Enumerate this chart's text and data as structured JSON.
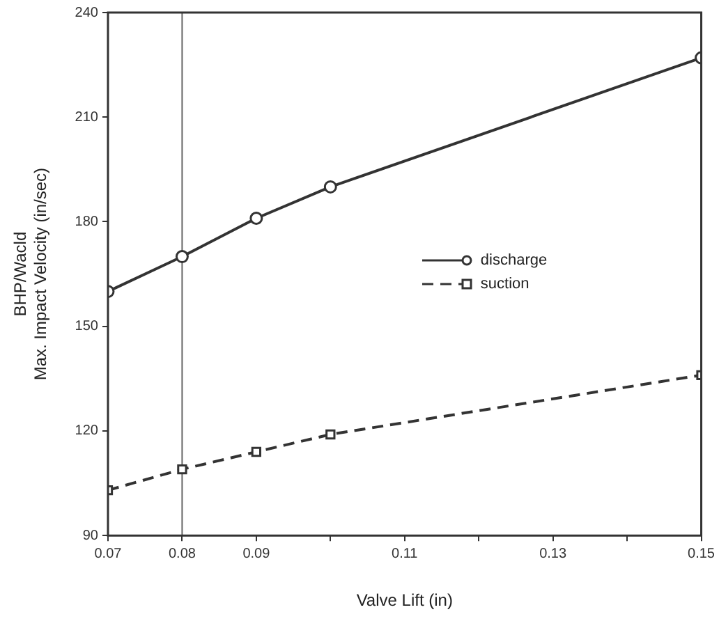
{
  "chart_data": {
    "type": "line",
    "xlabel": "Valve Lift (in)",
    "ylabel": "BHP/Wacld\nMax. Impact Velocity (in/sec)",
    "x": [
      0.07,
      0.08,
      0.09,
      0.1,
      0.15
    ],
    "series": [
      {
        "name": "discharge",
        "color": "#333333",
        "values": [
          160,
          170,
          181,
          190,
          227
        ],
        "marker": "circle",
        "line_style": "solid"
      },
      {
        "name": "suction",
        "color": "#333333",
        "values": [
          103,
          109,
          114,
          119,
          136
        ],
        "marker": "square",
        "line_style": "dashed"
      }
    ],
    "xlim": [
      0.07,
      0.15
    ],
    "xticks": [
      0.07,
      0.08,
      0.09,
      {
        "value": 0.1,
        "label": null
      },
      0.11,
      {
        "value": 0.12,
        "label": null
      },
      0.13,
      {
        "value": 0.14,
        "label": null
      },
      0.15
    ],
    "ylim": [
      90,
      240
    ],
    "yticks": [
      90,
      120,
      150,
      180,
      210,
      240
    ],
    "ref_lines": [
      {
        "axis": "x",
        "value": 0.08,
        "color": "#666666",
        "line_style": "solid"
      }
    ],
    "grid": false,
    "legend": "right"
  }
}
